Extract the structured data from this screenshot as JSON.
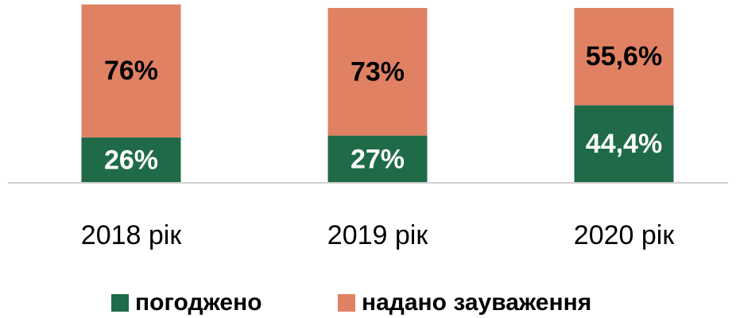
{
  "chart_data": {
    "type": "stacked_bar",
    "categories": [
      "2018 рік",
      "2019 рік",
      "2020 рік"
    ],
    "series": [
      {
        "name": "погоджено",
        "color": "#1f6b47",
        "values": [
          26,
          27,
          44.4
        ],
        "value_labels": [
          "26%",
          "27%",
          "44,4%"
        ]
      },
      {
        "name": "надано зауваження",
        "color": "#e08163",
        "values": [
          76,
          73,
          55.6
        ],
        "value_labels": [
          "76%",
          "73%",
          "55,6%"
        ]
      }
    ],
    "ylim": [
      0,
      100
    ],
    "grid": false,
    "legend": "bottom"
  }
}
